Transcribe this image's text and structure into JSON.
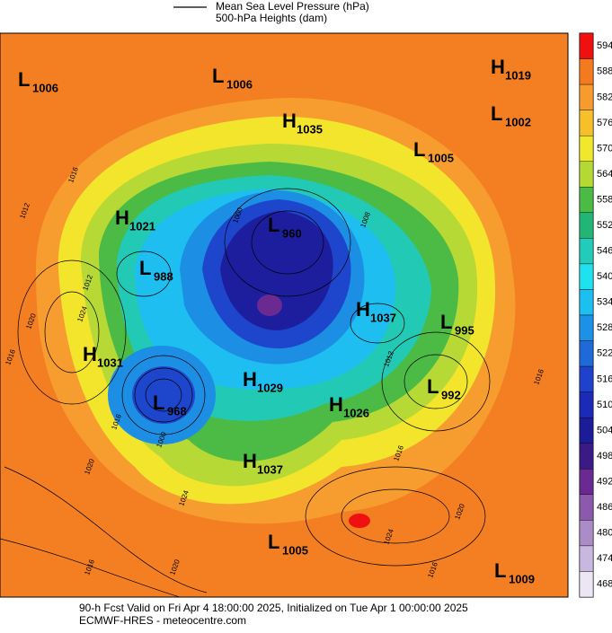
{
  "legend": [
    "Mean Sea Level Pressure (hPa)",
    "500-hPa Heights (dam)"
  ],
  "colorbar": {
    "values": [
      594,
      588,
      582,
      576,
      570,
      564,
      558,
      552,
      546,
      540,
      534,
      528,
      522,
      516,
      510,
      504,
      498,
      492,
      486,
      480,
      474,
      468
    ],
    "colors": [
      "#f01010",
      "#f47a1f",
      "#f79b2e",
      "#f7c02a",
      "#f0e82a",
      "#b4d934",
      "#4cbb45",
      "#21b676",
      "#22ccb8",
      "#1fe2ee",
      "#1bbff0",
      "#1c92e6",
      "#1e6ad8",
      "#1e42cc",
      "#1b2bb8",
      "#1d1c98",
      "#3b1a86",
      "#6a2a92",
      "#8c5aac",
      "#aa8cc6",
      "#c8b8e0",
      "#ece6f4"
    ]
  },
  "centers": [
    {
      "letter": "L",
      "value": 1006
    },
    {
      "letter": "L",
      "value": 1006
    },
    {
      "letter": "H",
      "value": 1019
    },
    {
      "letter": "L",
      "value": 1002
    },
    {
      "letter": "H",
      "value": 1035
    },
    {
      "letter": "L",
      "value": 1005
    },
    {
      "letter": "H",
      "value": 1021
    },
    {
      "letter": "L",
      "value": 960
    },
    {
      "letter": "L",
      "value": 988
    },
    {
      "letter": "H",
      "value": 1037
    },
    {
      "letter": "L",
      "value": 995
    },
    {
      "letter": "H",
      "value": 1031
    },
    {
      "letter": "H",
      "value": 1029
    },
    {
      "letter": "L",
      "value": 992
    },
    {
      "letter": "H",
      "value": 1026
    },
    {
      "letter": "L",
      "value": 968
    },
    {
      "letter": "H",
      "value": 1037
    },
    {
      "letter": "L",
      "value": 1005
    },
    {
      "letter": "L",
      "value": 1009
    }
  ],
  "isobar_labels": [
    1016,
    1012,
    1012,
    1024,
    1020,
    1016,
    1000,
    1008,
    1012,
    1016,
    1024,
    1020,
    1016,
    1024,
    1020,
    1016,
    1016,
    1000,
    1020,
    1016
  ],
  "footer": [
    "90-h Fcst Valid on Fri Apr  4 18:00:00 2025, Initialized on Tue Apr  1 00:00:00 2025",
    "ECMWF-HRES  - meteocentre.com"
  ]
}
